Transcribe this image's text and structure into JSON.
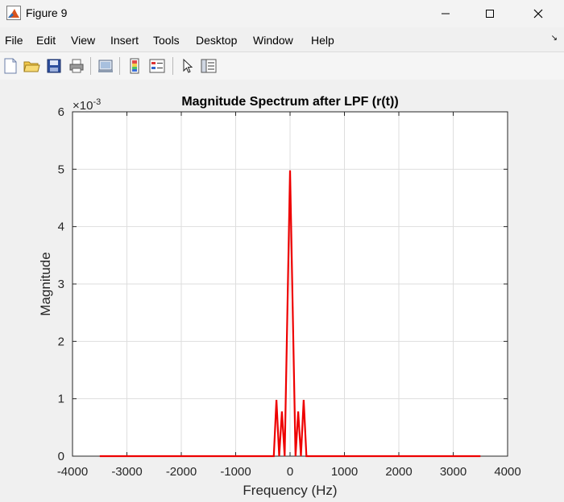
{
  "window": {
    "title": "Figure 9"
  },
  "menu": {
    "items": [
      "File",
      "Edit",
      "View",
      "Insert",
      "Tools",
      "Desktop",
      "Window",
      "Help"
    ]
  },
  "toolbar": {
    "icons": [
      "new-figure-icon",
      "open-file-icon",
      "save-icon",
      "print-icon",
      "link-plot-icon",
      "colorbar-icon",
      "legend-icon",
      "pointer-icon",
      "property-editor-icon"
    ]
  },
  "colors": {
    "line": "#ee0000",
    "axes_bg": "#ffffff",
    "figure_bg": "#f0f0f0"
  },
  "chart_data": {
    "type": "line",
    "title": "Magnitude Spectrum after LPF (r(t))",
    "xlabel": "Frequency (Hz)",
    "ylabel": "Magnitude",
    "exponent_label": "×10",
    "exponent_power": "-3",
    "xlim": [
      -4000,
      4000
    ],
    "ylim": [
      0,
      6
    ],
    "xticks": [
      "-4000",
      "-3000",
      "-2000",
      "-1000",
      "0",
      "1000",
      "2000",
      "3000",
      "4000"
    ],
    "yticks": [
      "0",
      "1",
      "2",
      "3",
      "4",
      "5",
      "6"
    ],
    "grid": true,
    "series": [
      {
        "x": [
          -3500,
          -300,
          -250,
          -200,
          -150,
          -100,
          0,
          100,
          150,
          200,
          250,
          300,
          3500
        ],
        "y": [
          0,
          0,
          0.98,
          0,
          0.78,
          0,
          4.98,
          0,
          0.78,
          0,
          0.98,
          0,
          0
        ]
      }
    ]
  }
}
